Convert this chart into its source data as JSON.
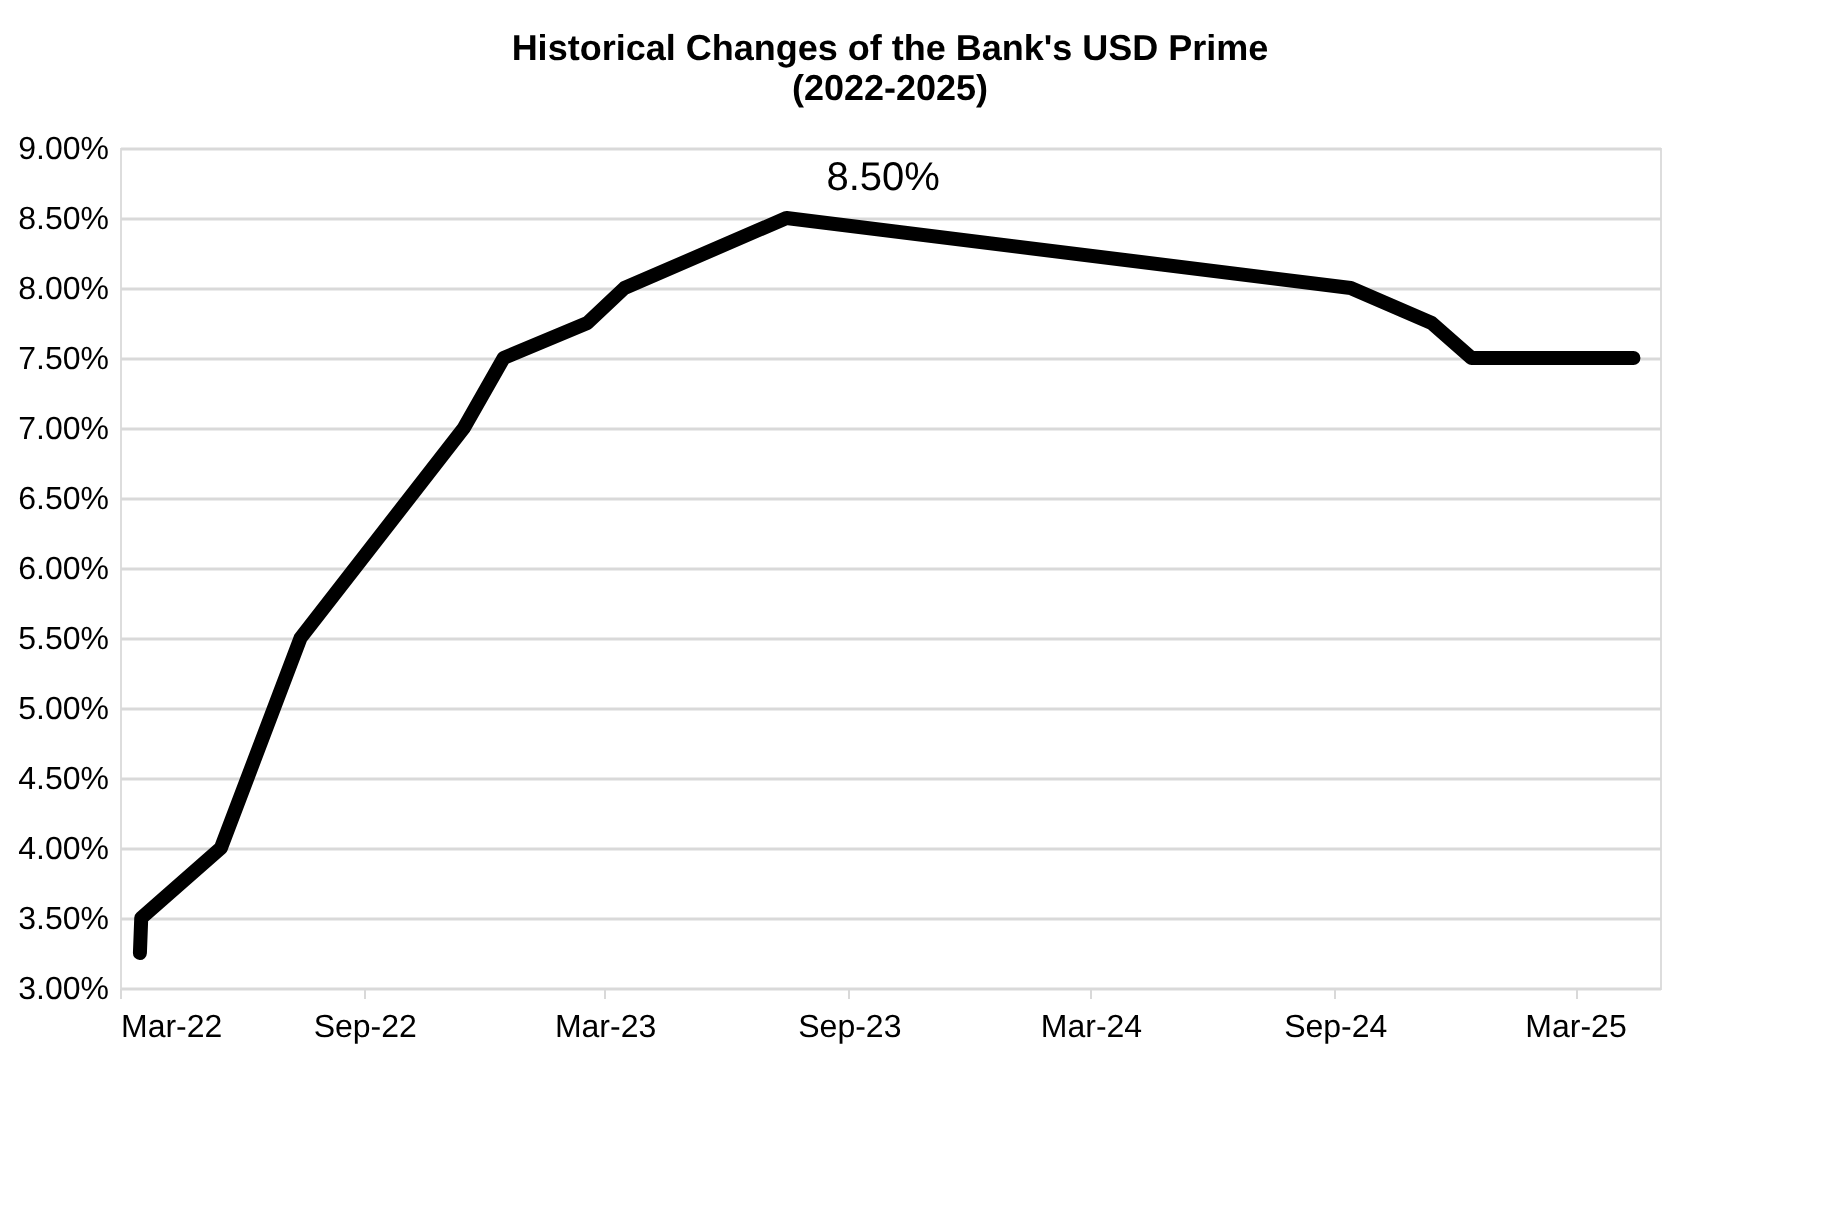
{
  "chart_data": {
    "type": "line",
    "title": [
      "Historical Changes of the Bank's USD Prime",
      "(2022-2025)"
    ],
    "x": [
      "2022-03-16",
      "2022-03-17",
      "2022-05-16",
      "2022-07-15",
      "2022-11-15",
      "2022-12-15",
      "2023-02-16",
      "2023-03-16",
      "2023-07-16",
      "2024-09-13",
      "2024-11-13",
      "2024-12-13",
      "2025-04-14"
    ],
    "series": [
      {
        "color": "#000000",
        "values": [
          3.25,
          3.5,
          4.0,
          5.5,
          7.0,
          7.5,
          7.75,
          8.0,
          8.5,
          8.0,
          7.75,
          7.5,
          7.5
        ]
      }
    ],
    "xlim": [
      "2022-03-01",
      "2025-05-04"
    ],
    "xticks": [
      {
        "value": "2022-03-01",
        "label": "Mar-22"
      },
      {
        "value": "2022-09-01",
        "label": "Sep-22"
      },
      {
        "value": "2023-03-01",
        "label": "Mar-23"
      },
      {
        "value": "2023-09-01",
        "label": "Sep-23"
      },
      {
        "value": "2024-03-01",
        "label": "Mar-24"
      },
      {
        "value": "2024-09-01",
        "label": "Sep-24"
      },
      {
        "value": "2025-03-01",
        "label": "Mar-25"
      }
    ],
    "ylim": [
      3.0,
      9.0
    ],
    "yticks": [
      {
        "value": 3.0,
        "label": "3.00%"
      },
      {
        "value": 3.5,
        "label": "3.50%"
      },
      {
        "value": 4.0,
        "label": "4.00%"
      },
      {
        "value": 4.5,
        "label": "4.50%"
      },
      {
        "value": 5.0,
        "label": "5.00%"
      },
      {
        "value": 5.5,
        "label": "5.50%"
      },
      {
        "value": 6.0,
        "label": "6.00%"
      },
      {
        "value": 6.5,
        "label": "6.50%"
      },
      {
        "value": 7.0,
        "label": "7.00%"
      },
      {
        "value": 7.5,
        "label": "7.50%"
      },
      {
        "value": 8.0,
        "label": "8.00%"
      },
      {
        "value": 8.5,
        "label": "8.50%"
      },
      {
        "value": 9.0,
        "label": "9.00%"
      }
    ],
    "grid": "y",
    "marker": "none",
    "line_style": "solid",
    "annotations": [
      {
        "text": "8.50%",
        "x": "2023-07-16",
        "y": 8.5
      }
    ]
  }
}
